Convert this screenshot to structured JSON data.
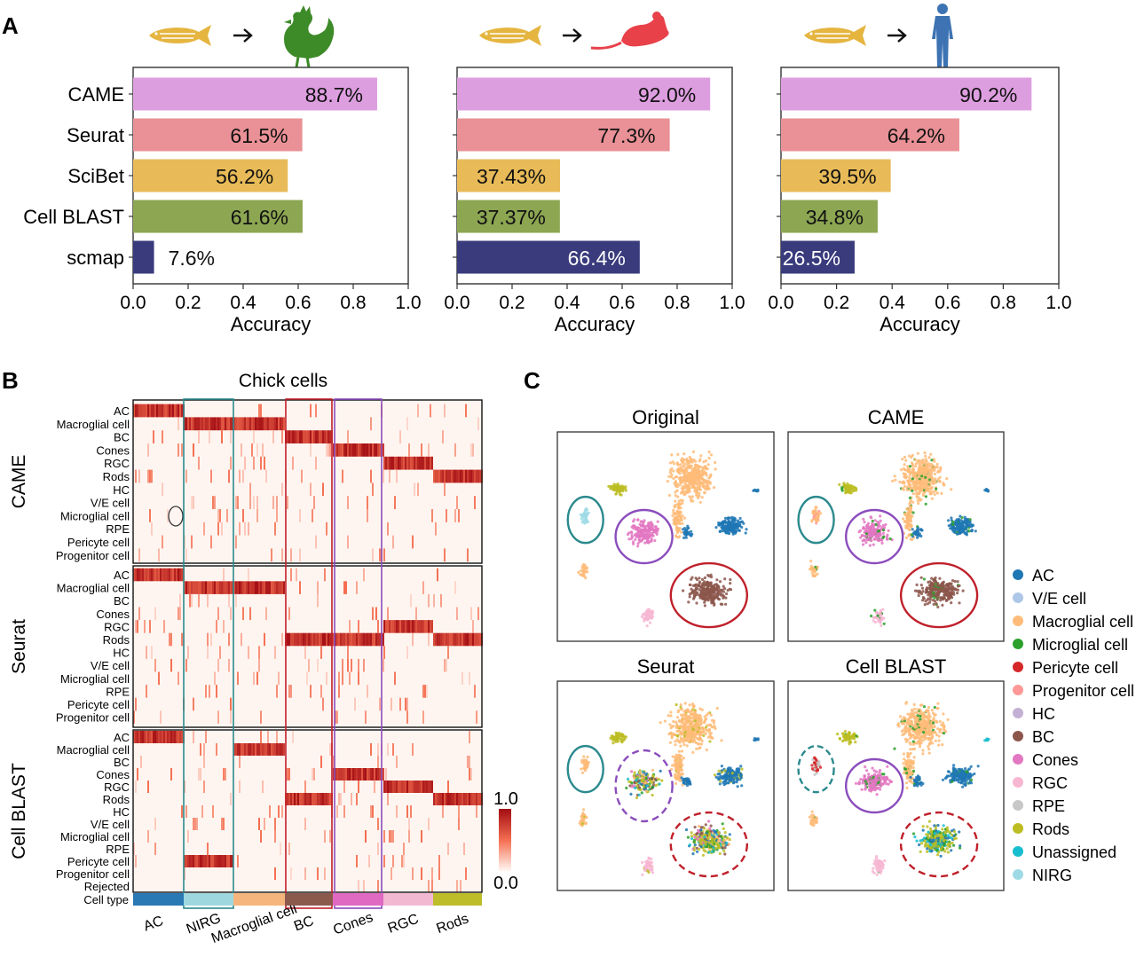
{
  "panels": {
    "a": "A",
    "b": "B",
    "c": "C"
  },
  "colors": {
    "methods": [
      "#dd9ee0",
      "#e99196",
      "#e8bb58",
      "#8ca652",
      "#393b7c"
    ],
    "fish": "#e5b53f",
    "chicken": "#3d8a28",
    "mouse": "#e8414a",
    "human": "#3d73b3",
    "heatmap_high": "#a50f15",
    "heatmap_low": "#fff5f0",
    "box_nirg": "#2b8a8e",
    "box_bc": "#c0202a",
    "box_cones": "#8b4dbd"
  },
  "icons": {
    "source": "zebrafish-icon",
    "targets": [
      "chicken-icon",
      "mouse-icon",
      "human-icon"
    ],
    "arrow": "arrow-right-icon"
  },
  "chart_data": [
    {
      "type": "bar",
      "orientation": "horizontal",
      "target_species": "chicken",
      "categories": [
        "CAME",
        "Seurat",
        "SciBet",
        "Cell BLAST",
        "scmap"
      ],
      "values": [
        0.887,
        0.615,
        0.562,
        0.616,
        0.076
      ],
      "value_labels": [
        "88.7%",
        "61.5%",
        "56.2%",
        "61.6%",
        "7.6%"
      ],
      "xlabel": "Accuracy",
      "xlim": [
        0,
        1
      ],
      "xticks": [
        "0.0",
        "0.2",
        "0.4",
        "0.6",
        "0.8",
        "1.0"
      ]
    },
    {
      "type": "bar",
      "orientation": "horizontal",
      "target_species": "mouse",
      "categories": [
        "CAME",
        "Seurat",
        "SciBet",
        "Cell BLAST",
        "scmap"
      ],
      "values": [
        0.92,
        0.773,
        0.3743,
        0.3737,
        0.664
      ],
      "value_labels": [
        "92.0%",
        "77.3%",
        "37.43%",
        "37.37%",
        "66.4%"
      ],
      "xlabel": "Accuracy",
      "xlim": [
        0,
        1
      ],
      "xticks": [
        "0.0",
        "0.2",
        "0.4",
        "0.6",
        "0.8",
        "1.0"
      ]
    },
    {
      "type": "bar",
      "orientation": "horizontal",
      "target_species": "human",
      "categories": [
        "CAME",
        "Seurat",
        "SciBet",
        "Cell BLAST",
        "scmap"
      ],
      "values": [
        0.902,
        0.642,
        0.395,
        0.348,
        0.265
      ],
      "value_labels": [
        "90.2%",
        "64.2%",
        "39.5%",
        "34.8%",
        "26.5%"
      ],
      "xlabel": "Accuracy",
      "xlim": [
        0,
        1
      ],
      "xticks": [
        "0.0",
        "0.2",
        "0.4",
        "0.6",
        "0.8",
        "1.0"
      ]
    },
    {
      "type": "heatmap",
      "title": "Chick cells",
      "blocks": [
        {
          "name": "CAME",
          "rows": [
            "AC",
            "Macroglial cell",
            "BC",
            "Cones",
            "RGC",
            "Rods",
            "HC",
            "V/E cell",
            "Microglial cell",
            "RPE",
            "Pericyte cell",
            "Progenitor cell"
          ]
        },
        {
          "name": "Seurat",
          "rows": [
            "AC",
            "Macroglial cell",
            "BC",
            "Cones",
            "RGC",
            "Rods",
            "HC",
            "V/E cell",
            "Microglial cell",
            "RPE",
            "Pericyte cell",
            "Progenitor cell"
          ]
        },
        {
          "name": "Cell BLAST",
          "rows": [
            "AC",
            "Macroglial cell",
            "BC",
            "Cones",
            "RGC",
            "Rods",
            "HC",
            "V/E cell",
            "Microglial cell",
            "RPE",
            "Pericyte cell",
            "Progenitor cell",
            "Rejected"
          ]
        }
      ],
      "columns": [
        {
          "name": "AC",
          "color": "#2a78b4"
        },
        {
          "name": "NIRG",
          "color": "#9ed8de"
        },
        {
          "name": "Macroglial cell",
          "color": "#f6b57c"
        },
        {
          "name": "BC",
          "color": "#8c5a4d"
        },
        {
          "name": "Cones",
          "color": "#e06ac2"
        },
        {
          "name": "RGC",
          "color": "#f2b8d2"
        },
        {
          "name": "Rods",
          "color": "#bdbd2a"
        }
      ],
      "cell_type_label": "Cell type",
      "colorbar": {
        "max": "1.0",
        "min": "0.0"
      },
      "assignments": {
        "CAME": {
          "AC": "AC",
          "NIRG": "Macroglial cell",
          "Macroglial cell": "Macroglial cell",
          "BC": "BC",
          "Cones": "Cones",
          "RGC": "RGC",
          "Rods": "Rods"
        },
        "Seurat": {
          "AC": "AC",
          "NIRG": "Macroglial cell",
          "Macroglial cell": "Macroglial cell",
          "BC": "Rods",
          "Cones": "Rods",
          "RGC": "RGC",
          "Rods": "Rods"
        },
        "Cell BLAST": {
          "AC": "AC",
          "NIRG": "Pericyte cell",
          "Macroglial cell": "Macroglial cell",
          "BC": "Rods",
          "Cones": "Cones",
          "RGC": "RGC",
          "Rods": "Rods"
        }
      }
    },
    {
      "type": "scatter",
      "subplots": [
        "Original",
        "CAME",
        "Seurat",
        "Cell BLAST"
      ],
      "legend": [
        {
          "label": "AC",
          "color": "#1f77b4"
        },
        {
          "label": "V/E cell",
          "color": "#aec7e8"
        },
        {
          "label": "Macroglial cell",
          "color": "#ffbb78"
        },
        {
          "label": "Microglial cell",
          "color": "#2ca02c"
        },
        {
          "label": "Pericyte cell",
          "color": "#d62728"
        },
        {
          "label": "Progenitor cell",
          "color": "#ff9896"
        },
        {
          "label": "HC",
          "color": "#c5b0d5"
        },
        {
          "label": "BC",
          "color": "#8c564b"
        },
        {
          "label": "Cones",
          "color": "#e377c2"
        },
        {
          "label": "RGC",
          "color": "#f7b6d2"
        },
        {
          "label": "RPE",
          "color": "#c7c7c7"
        },
        {
          "label": "Rods",
          "color": "#bcbd22"
        },
        {
          "label": "Unassigned",
          "color": "#17becf"
        },
        {
          "label": "NIRG",
          "color": "#9edae5"
        }
      ],
      "legend_placement": "right"
    }
  ]
}
